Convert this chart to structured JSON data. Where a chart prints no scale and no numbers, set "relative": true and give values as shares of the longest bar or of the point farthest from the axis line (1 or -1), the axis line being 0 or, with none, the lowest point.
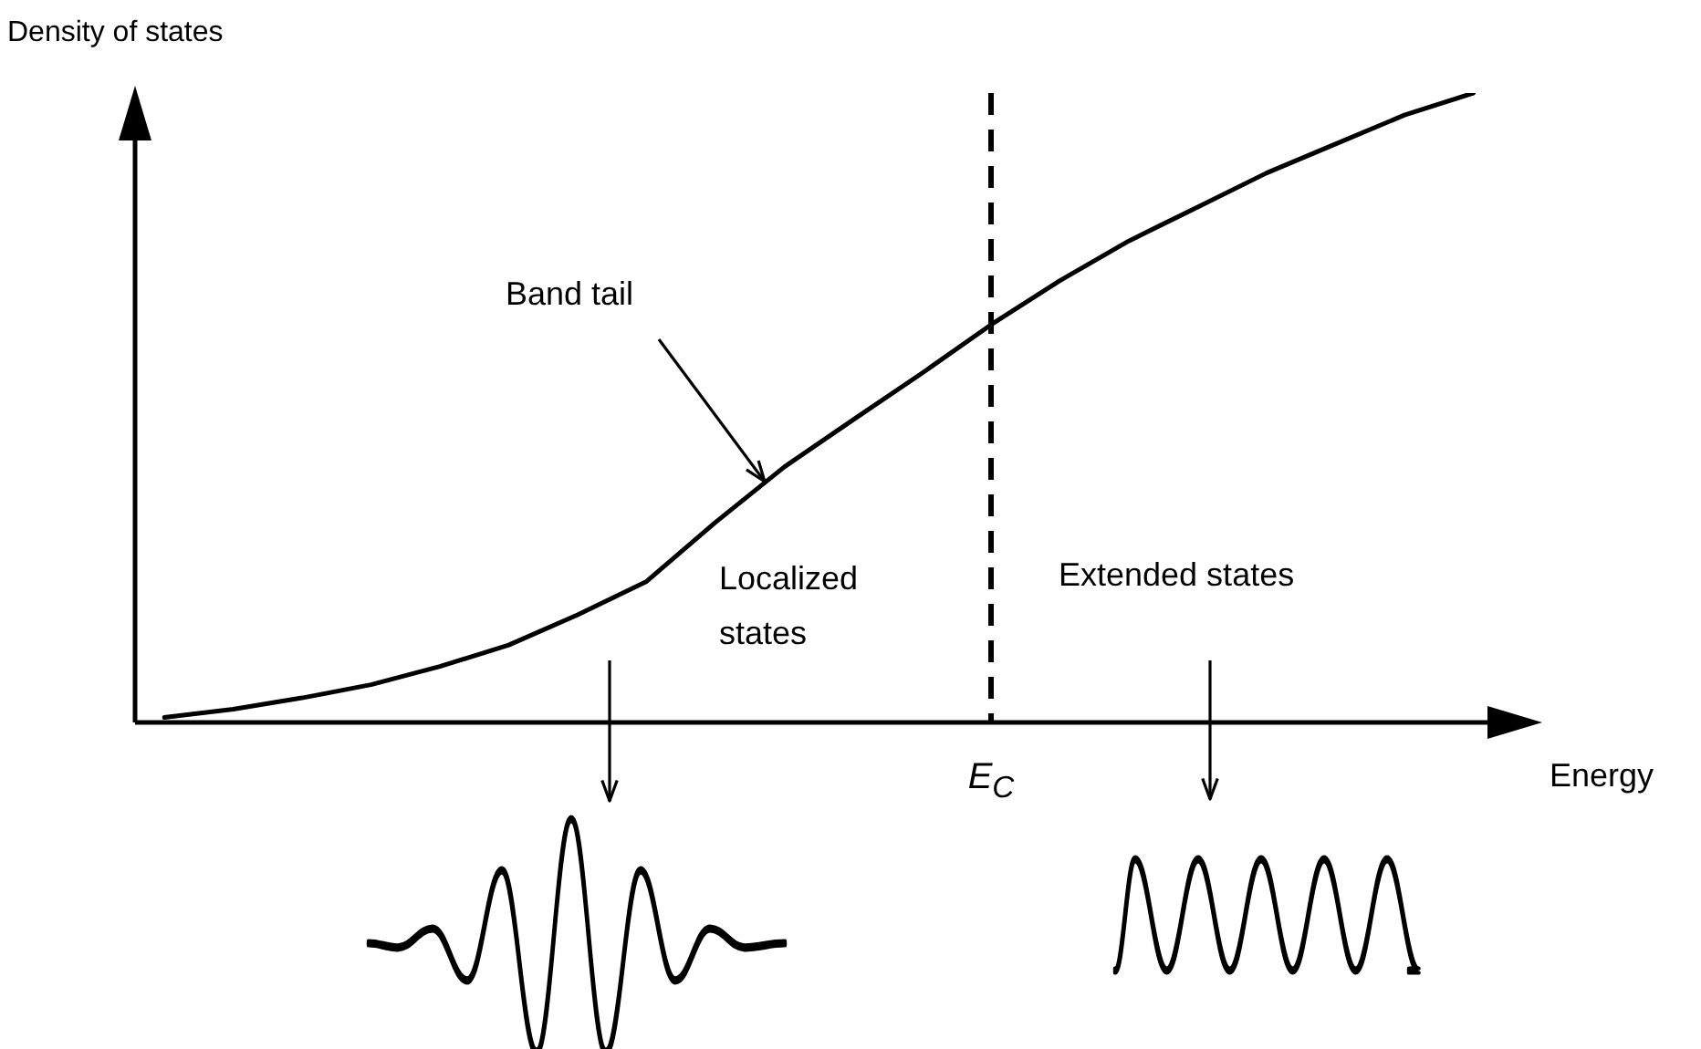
{
  "chart_data": {
    "type": "line",
    "relative": true,
    "ylabel": "Density of states",
    "xlabel": "Energy",
    "categories": [
      null,
      null,
      null,
      null,
      null,
      null,
      null,
      null,
      null,
      null,
      null,
      null,
      null,
      null,
      null,
      null,
      null,
      null,
      null,
      null,
      null
    ],
    "values": [
      0.008,
      0.021,
      0.039,
      0.06,
      0.089,
      0.123,
      0.171,
      0.224,
      0.318,
      0.406,
      0.481,
      0.555,
      0.632,
      0.702,
      0.765,
      0.819,
      0.873,
      0.919,
      0.965,
      1.0,
      null
    ],
    "color": "#000000",
    "marker": "none",
    "line_style": "solid",
    "grid": false,
    "legend": false,
    "annotations": [
      "Band tail",
      "Localized states",
      "Extended states",
      "E$_{C}$"
    ]
  }
}
